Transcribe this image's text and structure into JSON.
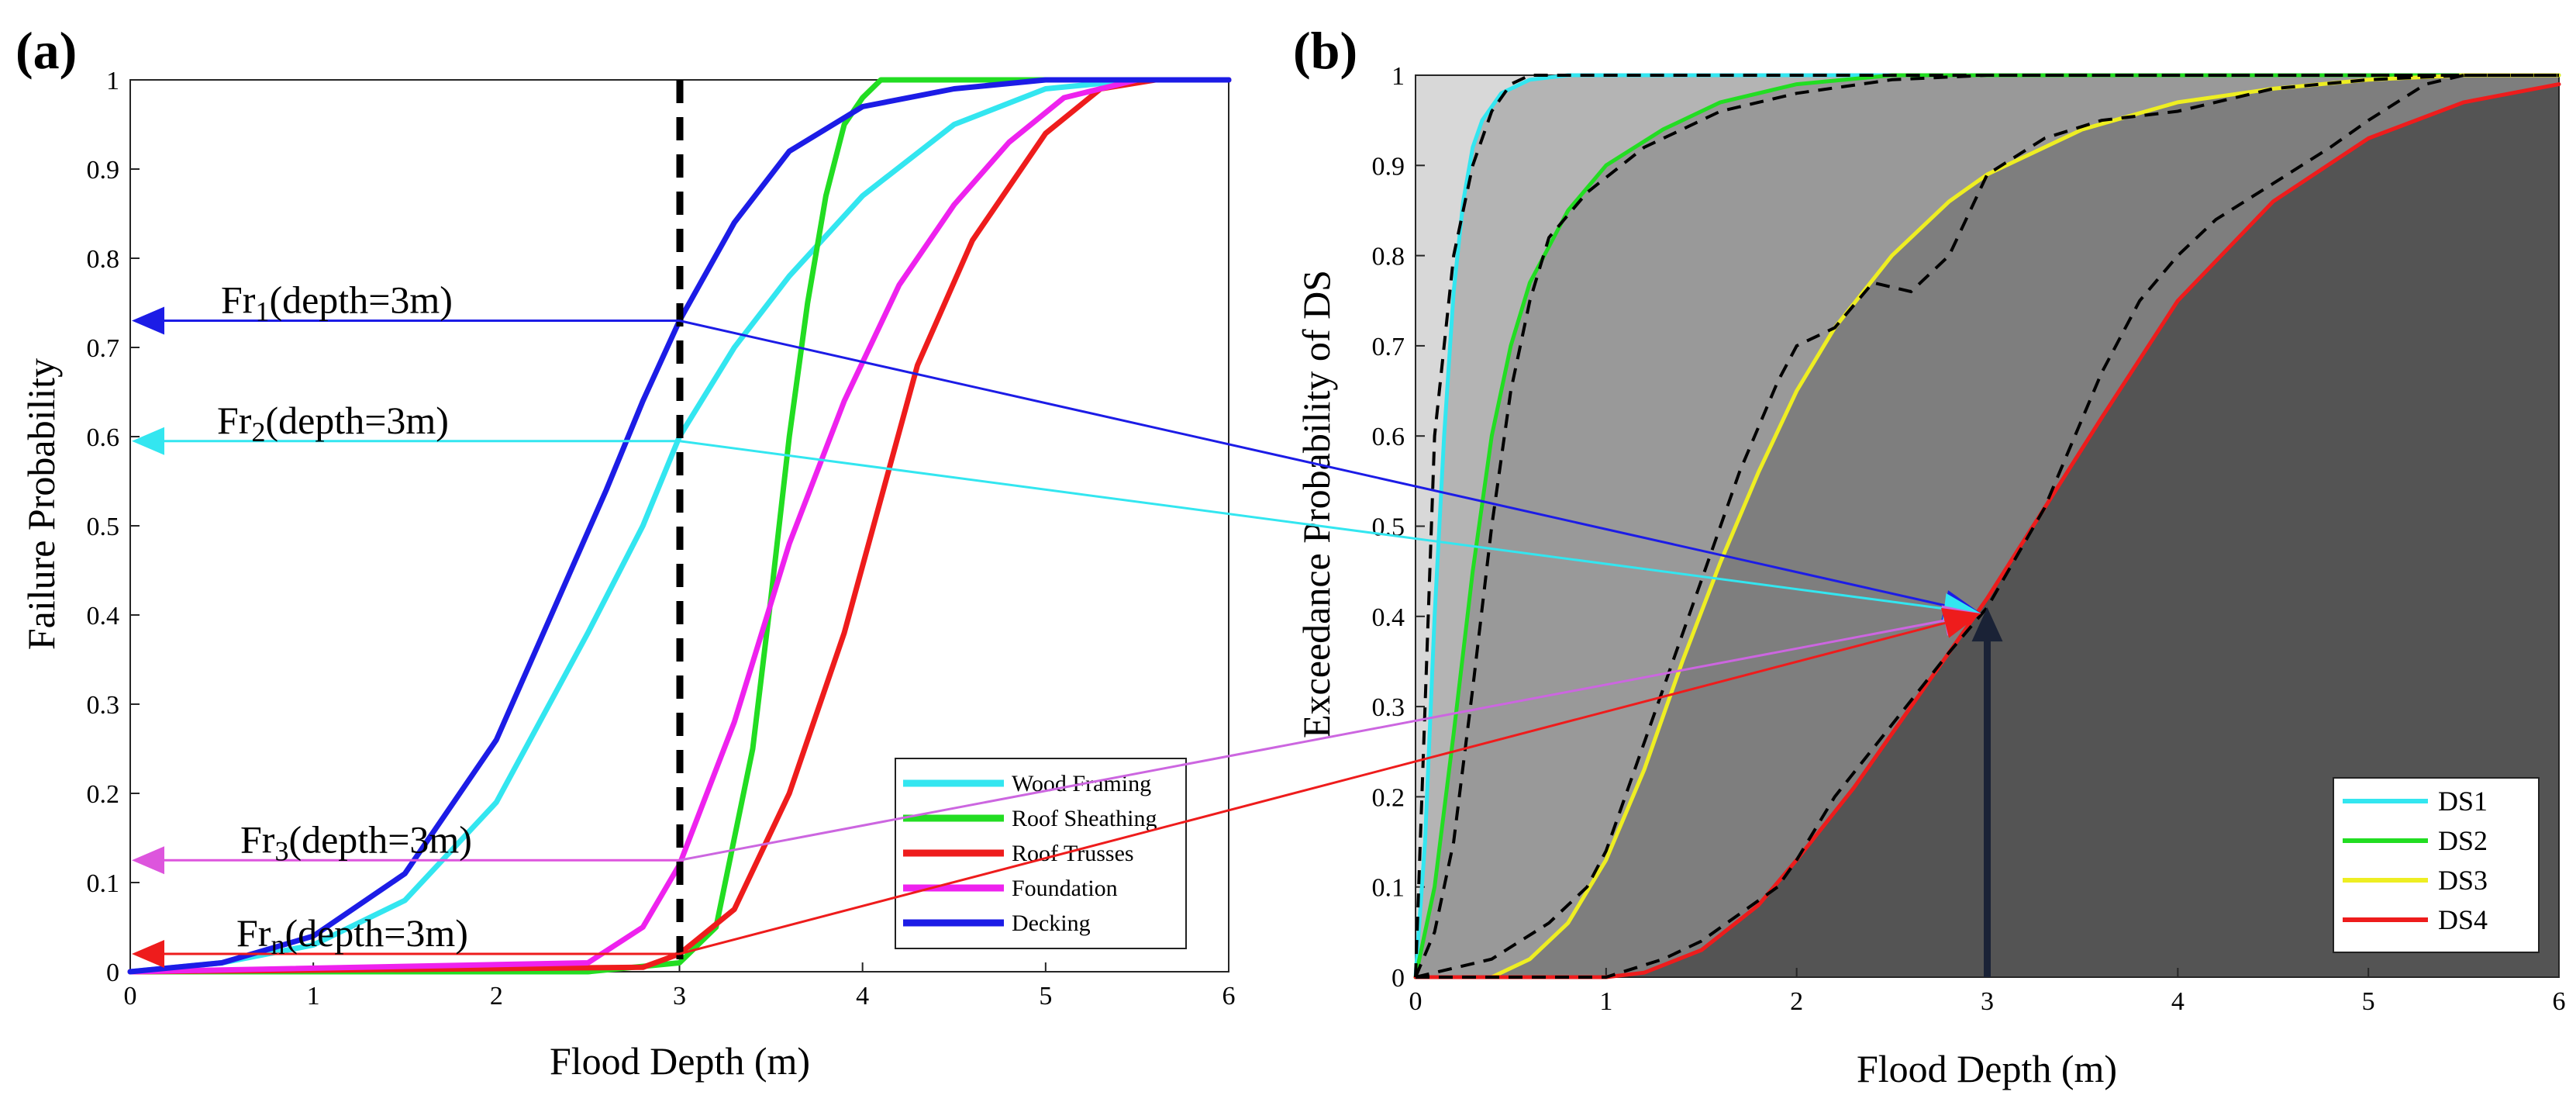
{
  "chart_data": [
    {
      "panel_label": "(a)",
      "type": "line",
      "xlabel": "Flood Depth (m)",
      "ylabel": "Failure Probability",
      "xlim": [
        0,
        6
      ],
      "ylim": [
        0,
        1
      ],
      "x_ticks": [
        "0",
        "1",
        "2",
        "3",
        "4",
        "5",
        "6"
      ],
      "y_ticks": [
        "0",
        "0.1",
        "0.2",
        "0.3",
        "0.4",
        "0.5",
        "0.6",
        "0.7",
        "0.8",
        "0.9",
        "1"
      ],
      "legend_position": "bottom-right",
      "series": [
        {
          "name": "Wood Framing",
          "color": "#33e6f0",
          "x": [
            0,
            0.5,
            1.0,
            1.5,
            2.0,
            2.5,
            2.8,
            3.0,
            3.3,
            3.6,
            4.0,
            4.5,
            5.0,
            5.5,
            6.0
          ],
          "y": [
            0,
            0.01,
            0.03,
            0.08,
            0.19,
            0.38,
            0.5,
            0.6,
            0.7,
            0.78,
            0.87,
            0.95,
            0.99,
            1.0,
            1.0
          ]
        },
        {
          "name": "Roof Sheathing",
          "color": "#22dd22",
          "x": [
            0,
            2.5,
            3.0,
            3.2,
            3.4,
            3.5,
            3.6,
            3.7,
            3.8,
            3.9,
            4.0,
            4.1,
            4.2,
            6.0
          ],
          "y": [
            0,
            0,
            0.01,
            0.05,
            0.25,
            0.42,
            0.6,
            0.75,
            0.87,
            0.95,
            0.98,
            1.0,
            1.0,
            1.0
          ]
        },
        {
          "name": "Roof Trusses",
          "color": "#ee1c1c",
          "x": [
            0,
            2.8,
            3.0,
            3.3,
            3.6,
            3.9,
            4.1,
            4.3,
            4.6,
            5.0,
            5.3,
            5.6,
            6.0
          ],
          "y": [
            0,
            0.005,
            0.02,
            0.07,
            0.2,
            0.38,
            0.53,
            0.68,
            0.82,
            0.94,
            0.99,
            1.0,
            1.0
          ]
        },
        {
          "name": "Foundation",
          "color": "#ee22ee",
          "x": [
            0,
            2.5,
            2.8,
            3.0,
            3.3,
            3.6,
            3.9,
            4.2,
            4.5,
            4.8,
            5.1,
            5.5,
            6.0
          ],
          "y": [
            0,
            0.01,
            0.05,
            0.12,
            0.28,
            0.48,
            0.64,
            0.77,
            0.86,
            0.93,
            0.98,
            1.0,
            1.0
          ]
        },
        {
          "name": "Decking",
          "color": "#1c1ce6",
          "x": [
            0,
            0.5,
            1.0,
            1.5,
            2.0,
            2.3,
            2.6,
            2.8,
            3.0,
            3.3,
            3.6,
            4.0,
            4.5,
            5.0,
            5.5,
            6.0
          ],
          "y": [
            0,
            0.01,
            0.04,
            0.11,
            0.26,
            0.4,
            0.54,
            0.64,
            0.73,
            0.84,
            0.92,
            0.97,
            0.99,
            1.0,
            1.0,
            1.0
          ]
        }
      ],
      "reference_line": {
        "x": 3,
        "style": "dashed"
      },
      "annotations": [
        {
          "main": "Fr",
          "sub": "1",
          "rest": "(depth=3m)",
          "color": "#1c1ce6",
          "level": 0.73
        },
        {
          "main": "Fr",
          "sub": "2",
          "rest": "(depth=3m)",
          "color": "#33e6f0",
          "level": 0.595
        },
        {
          "main": "Fr",
          "sub": "3",
          "rest": "(depth=3m)",
          "color": "#dd55dd",
          "level": 0.125
        },
        {
          "main": "Fr",
          "sub": "n",
          "rest": "(depth=3m)",
          "color": "#ee1c1c",
          "level": 0.02
        }
      ]
    },
    {
      "panel_label": "(b)",
      "type": "area",
      "xlabel": "Flood Depth (m)",
      "ylabel": "Exceedance Probability of DS",
      "xlim": [
        0,
        6
      ],
      "ylim": [
        0,
        1
      ],
      "x_ticks": [
        "0",
        "1",
        "2",
        "3",
        "4",
        "5",
        "6"
      ],
      "y_ticks": [
        "0",
        "0.1",
        "0.2",
        "0.3",
        "0.4",
        "0.5",
        "0.6",
        "0.7",
        "0.8",
        "0.9",
        "1"
      ],
      "legend_position": "bottom-right",
      "region_colors": [
        "#d8d8d8",
        "#b4b4b4",
        "#999999",
        "#7e7e7e",
        "#545454"
      ],
      "series": [
        {
          "name": "DS1",
          "color": "#33e6f0",
          "x": [
            0,
            0.05,
            0.1,
            0.15,
            0.2,
            0.25,
            0.3,
            0.35,
            0.45,
            0.6,
            0.8,
            1.0,
            6.0
          ],
          "y": [
            0,
            0.15,
            0.4,
            0.6,
            0.76,
            0.86,
            0.92,
            0.95,
            0.98,
            0.995,
            1.0,
            1.0,
            1.0
          ]
        },
        {
          "name": "DS2",
          "color": "#22dd22",
          "x": [
            0,
            0.1,
            0.2,
            0.3,
            0.4,
            0.5,
            0.6,
            0.8,
            1.0,
            1.3,
            1.6,
            2.0,
            2.5,
            3.0,
            6.0
          ],
          "y": [
            0,
            0.1,
            0.27,
            0.45,
            0.6,
            0.7,
            0.77,
            0.85,
            0.9,
            0.94,
            0.97,
            0.99,
            1.0,
            1.0,
            1.0
          ]
        },
        {
          "name": "DS3",
          "color": "#eeee22",
          "x": [
            0,
            0.4,
            0.6,
            0.8,
            1.0,
            1.2,
            1.4,
            1.6,
            1.8,
            2.0,
            2.2,
            2.5,
            2.8,
            3.0,
            3.5,
            4.0,
            4.5,
            5.0,
            5.5,
            6.0
          ],
          "y": [
            0,
            0,
            0.02,
            0.06,
            0.13,
            0.23,
            0.35,
            0.46,
            0.56,
            0.65,
            0.72,
            0.8,
            0.86,
            0.89,
            0.94,
            0.97,
            0.985,
            0.995,
            1.0,
            1.0
          ]
        },
        {
          "name": "DS4",
          "color": "#ee1c1c",
          "x": [
            0,
            1.0,
            1.2,
            1.5,
            1.8,
            2.0,
            2.3,
            2.5,
            2.7,
            3.0,
            3.3,
            3.6,
            4.0,
            4.5,
            5.0,
            5.5,
            6.0
          ],
          "y": [
            0,
            0,
            0.005,
            0.03,
            0.08,
            0.13,
            0.21,
            0.27,
            0.33,
            0.42,
            0.52,
            0.62,
            0.75,
            0.86,
            0.93,
            0.97,
            0.99
          ]
        }
      ],
      "dashed_series": [
        {
          "x": [
            0,
            0.05,
            0.1,
            0.2,
            0.3,
            0.4,
            0.5,
            0.6,
            0.7,
            6.0
          ],
          "y": [
            0,
            0.3,
            0.6,
            0.8,
            0.9,
            0.96,
            0.99,
            1.0,
            1.0,
            1.0
          ]
        },
        {
          "x": [
            0,
            0.1,
            0.2,
            0.3,
            0.4,
            0.5,
            0.6,
            0.7,
            0.9,
            1.2,
            1.6,
            2.0,
            2.5,
            3.0,
            6.0
          ],
          "y": [
            0,
            0.05,
            0.15,
            0.32,
            0.5,
            0.65,
            0.75,
            0.82,
            0.87,
            0.92,
            0.96,
            0.98,
            0.995,
            1.0,
            1.0
          ]
        },
        {
          "x": [
            0,
            0.4,
            0.7,
            0.9,
            1.0,
            1.1,
            1.3,
            1.5,
            1.7,
            1.9,
            2.0,
            2.2,
            2.4,
            2.6,
            2.8,
            3.0,
            3.3,
            3.6,
            4.0,
            4.5,
            5.0,
            5.5,
            6.0
          ],
          "y": [
            0,
            0.02,
            0.06,
            0.1,
            0.14,
            0.2,
            0.32,
            0.44,
            0.56,
            0.66,
            0.7,
            0.72,
            0.77,
            0.76,
            0.8,
            0.89,
            0.93,
            0.95,
            0.96,
            0.985,
            0.995,
            1.0,
            1.0
          ]
        },
        {
          "x": [
            0,
            1.0,
            1.3,
            1.5,
            1.7,
            1.9,
            2.0,
            2.2,
            2.5,
            2.8,
            3.0,
            3.3,
            3.6,
            3.8,
            4.0,
            4.2,
            4.5,
            4.8,
            5.0,
            5.3,
            5.5,
            6.0
          ],
          "y": [
            0,
            0,
            0.02,
            0.04,
            0.07,
            0.1,
            0.13,
            0.2,
            0.28,
            0.36,
            0.41,
            0.52,
            0.67,
            0.75,
            0.8,
            0.84,
            0.88,
            0.92,
            0.95,
            0.99,
            1.0,
            1.0
          ]
        }
      ],
      "marker": {
        "x": 3,
        "y": 0.41
      }
    }
  ]
}
